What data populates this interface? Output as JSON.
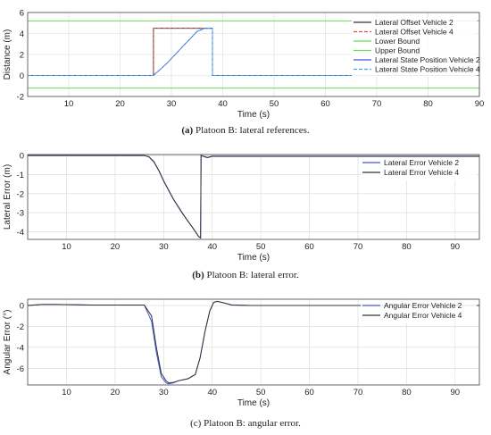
{
  "captions": {
    "a_tag": "(a)",
    "a_text": " Platoon B: lateral references.",
    "b_tag": "(b)",
    "b_text": " Platoon B: lateral error.",
    "c_tag": "(c)",
    "c_text": " Platoon B: angular error."
  },
  "colors": {
    "black": "#333333",
    "red": "#d9534f",
    "green": "#66dd55",
    "blue": "#4455dd",
    "cyan_dash": "#4aa8e0",
    "grid": "#d9d9d9"
  },
  "chart_data": [
    {
      "id": "a",
      "type": "line",
      "xlabel": "Time (s)",
      "ylabel": "Distance (m)",
      "xlim": [
        2,
        90
      ],
      "ylim": [
        -2,
        6
      ],
      "xticks": [
        10,
        20,
        30,
        40,
        50,
        60,
        70,
        80,
        90
      ],
      "yticks": [
        -2,
        0,
        2,
        4,
        6
      ],
      "grid": true,
      "legend_position": "top-right",
      "series": [
        {
          "name": "Lateral Offset Vehicle 2",
          "color": "#333333",
          "dash": "solid",
          "x": [
            2,
            26.5,
            26.5,
            38,
            38,
            90
          ],
          "y": [
            0,
            0,
            4.5,
            4.5,
            0,
            0
          ]
        },
        {
          "name": "Lateral Offset Vehicle 4",
          "color": "#d9534f",
          "dash": "dashed",
          "x": [
            2,
            26.5,
            26.5,
            38,
            38,
            90
          ],
          "y": [
            0,
            0,
            4.5,
            4.5,
            0,
            0
          ]
        },
        {
          "name": "Lower Bound",
          "color": "#66dd55",
          "dash": "solid",
          "x": [
            2,
            90
          ],
          "y": [
            -1.2,
            -1.2
          ]
        },
        {
          "name": "Upper Bound",
          "color": "#66dd55",
          "dash": "solid",
          "x": [
            2,
            90
          ],
          "y": [
            5.2,
            5.2
          ]
        },
        {
          "name": "Lateral State Position Vehicle 2",
          "color": "#4455dd",
          "dash": "solid",
          "x": [
            2,
            26.5,
            29,
            35,
            36.5,
            38,
            38,
            90
          ],
          "y": [
            0,
            0,
            1.1,
            4.2,
            4.5,
            4.5,
            0,
            0
          ]
        },
        {
          "name": "Lateral State Position Vehicle 4",
          "color": "#4aa8e0",
          "dash": "dashed",
          "x": [
            2,
            26.5,
            29,
            35,
            36.5,
            38,
            38,
            90
          ],
          "y": [
            0,
            0,
            1.1,
            4.2,
            4.5,
            4.5,
            0,
            0
          ]
        }
      ]
    },
    {
      "id": "b",
      "type": "line",
      "xlabel": "Time (s)",
      "ylabel": "Lateral Error (m)",
      "xlim": [
        2,
        95
      ],
      "ylim": [
        -4.4,
        0.05
      ],
      "xticks": [
        10,
        20,
        30,
        40,
        50,
        60,
        70,
        80,
        90
      ],
      "yticks": [
        -4,
        -3,
        -2,
        -1,
        0
      ],
      "grid": true,
      "legend_position": "top-right",
      "series": [
        {
          "name": "Lateral Error Vehicle 2",
          "color": "#4455dd",
          "dash": "solid",
          "x": [
            2,
            26,
            27,
            28,
            29,
            30,
            32,
            34,
            36,
            37.2,
            37.6,
            37.7,
            38.2,
            39,
            40,
            95
          ],
          "y": [
            0,
            0,
            -0.08,
            -0.35,
            -0.8,
            -1.35,
            -2.3,
            -3.1,
            -3.8,
            -4.25,
            -4.3,
            0,
            -0.05,
            -0.12,
            -0.05,
            -0.05
          ]
        },
        {
          "name": "Lateral Error Vehicle 4",
          "color": "#333333",
          "dash": "solid",
          "x": [
            2,
            26,
            27,
            28,
            29,
            30,
            32,
            34,
            36,
            37.2,
            37.6,
            37.7,
            38.2,
            39,
            40,
            95
          ],
          "y": [
            0,
            0,
            -0.07,
            -0.33,
            -0.78,
            -1.33,
            -2.28,
            -3.08,
            -3.8,
            -4.25,
            -4.33,
            0,
            -0.04,
            -0.1,
            -0.04,
            -0.04
          ]
        }
      ]
    },
    {
      "id": "c",
      "type": "line",
      "xlabel": "Time (s)",
      "ylabel": "Angular Error (°)",
      "xlim": [
        2,
        95
      ],
      "ylim": [
        -7.6,
        0.6
      ],
      "xticks": [
        10,
        20,
        30,
        40,
        50,
        60,
        70,
        80,
        90
      ],
      "yticks": [
        -6,
        -4,
        -2,
        0
      ],
      "grid": true,
      "legend_position": "top-right",
      "series": [
        {
          "name": "Angular Error Vehicle 2",
          "color": "#4455dd",
          "dash": "solid",
          "x": [
            2,
            5,
            8,
            15,
            26,
            27.5,
            28.5,
            29.5,
            30.5,
            31,
            32,
            33,
            35,
            36.5,
            37.5,
            38.5,
            39.5,
            40.3,
            41,
            42,
            44,
            48,
            95
          ],
          "y": [
            0,
            0.1,
            0.1,
            0.05,
            0.05,
            -1.5,
            -4.5,
            -6.8,
            -7.4,
            -7.5,
            -7.4,
            -7.2,
            -7.0,
            -6.6,
            -5.0,
            -2.5,
            -0.5,
            0.3,
            0.4,
            0.3,
            0.05,
            0,
            0
          ]
        },
        {
          "name": "Angular Error Vehicle 4",
          "color": "#333333",
          "dash": "solid",
          "x": [
            2,
            5,
            8,
            15,
            26,
            27.5,
            28.5,
            29.5,
            30.5,
            31,
            32,
            33,
            35,
            36.5,
            37.5,
            38.5,
            39.5,
            40.3,
            41,
            42,
            44,
            48,
            95
          ],
          "y": [
            0,
            0.1,
            0.1,
            0.05,
            0.05,
            -1.0,
            -4.0,
            -6.5,
            -7.2,
            -7.4,
            -7.35,
            -7.2,
            -7.0,
            -6.6,
            -5.0,
            -2.5,
            -0.5,
            0.3,
            0.4,
            0.3,
            0.05,
            0,
            0
          ]
        }
      ]
    }
  ]
}
